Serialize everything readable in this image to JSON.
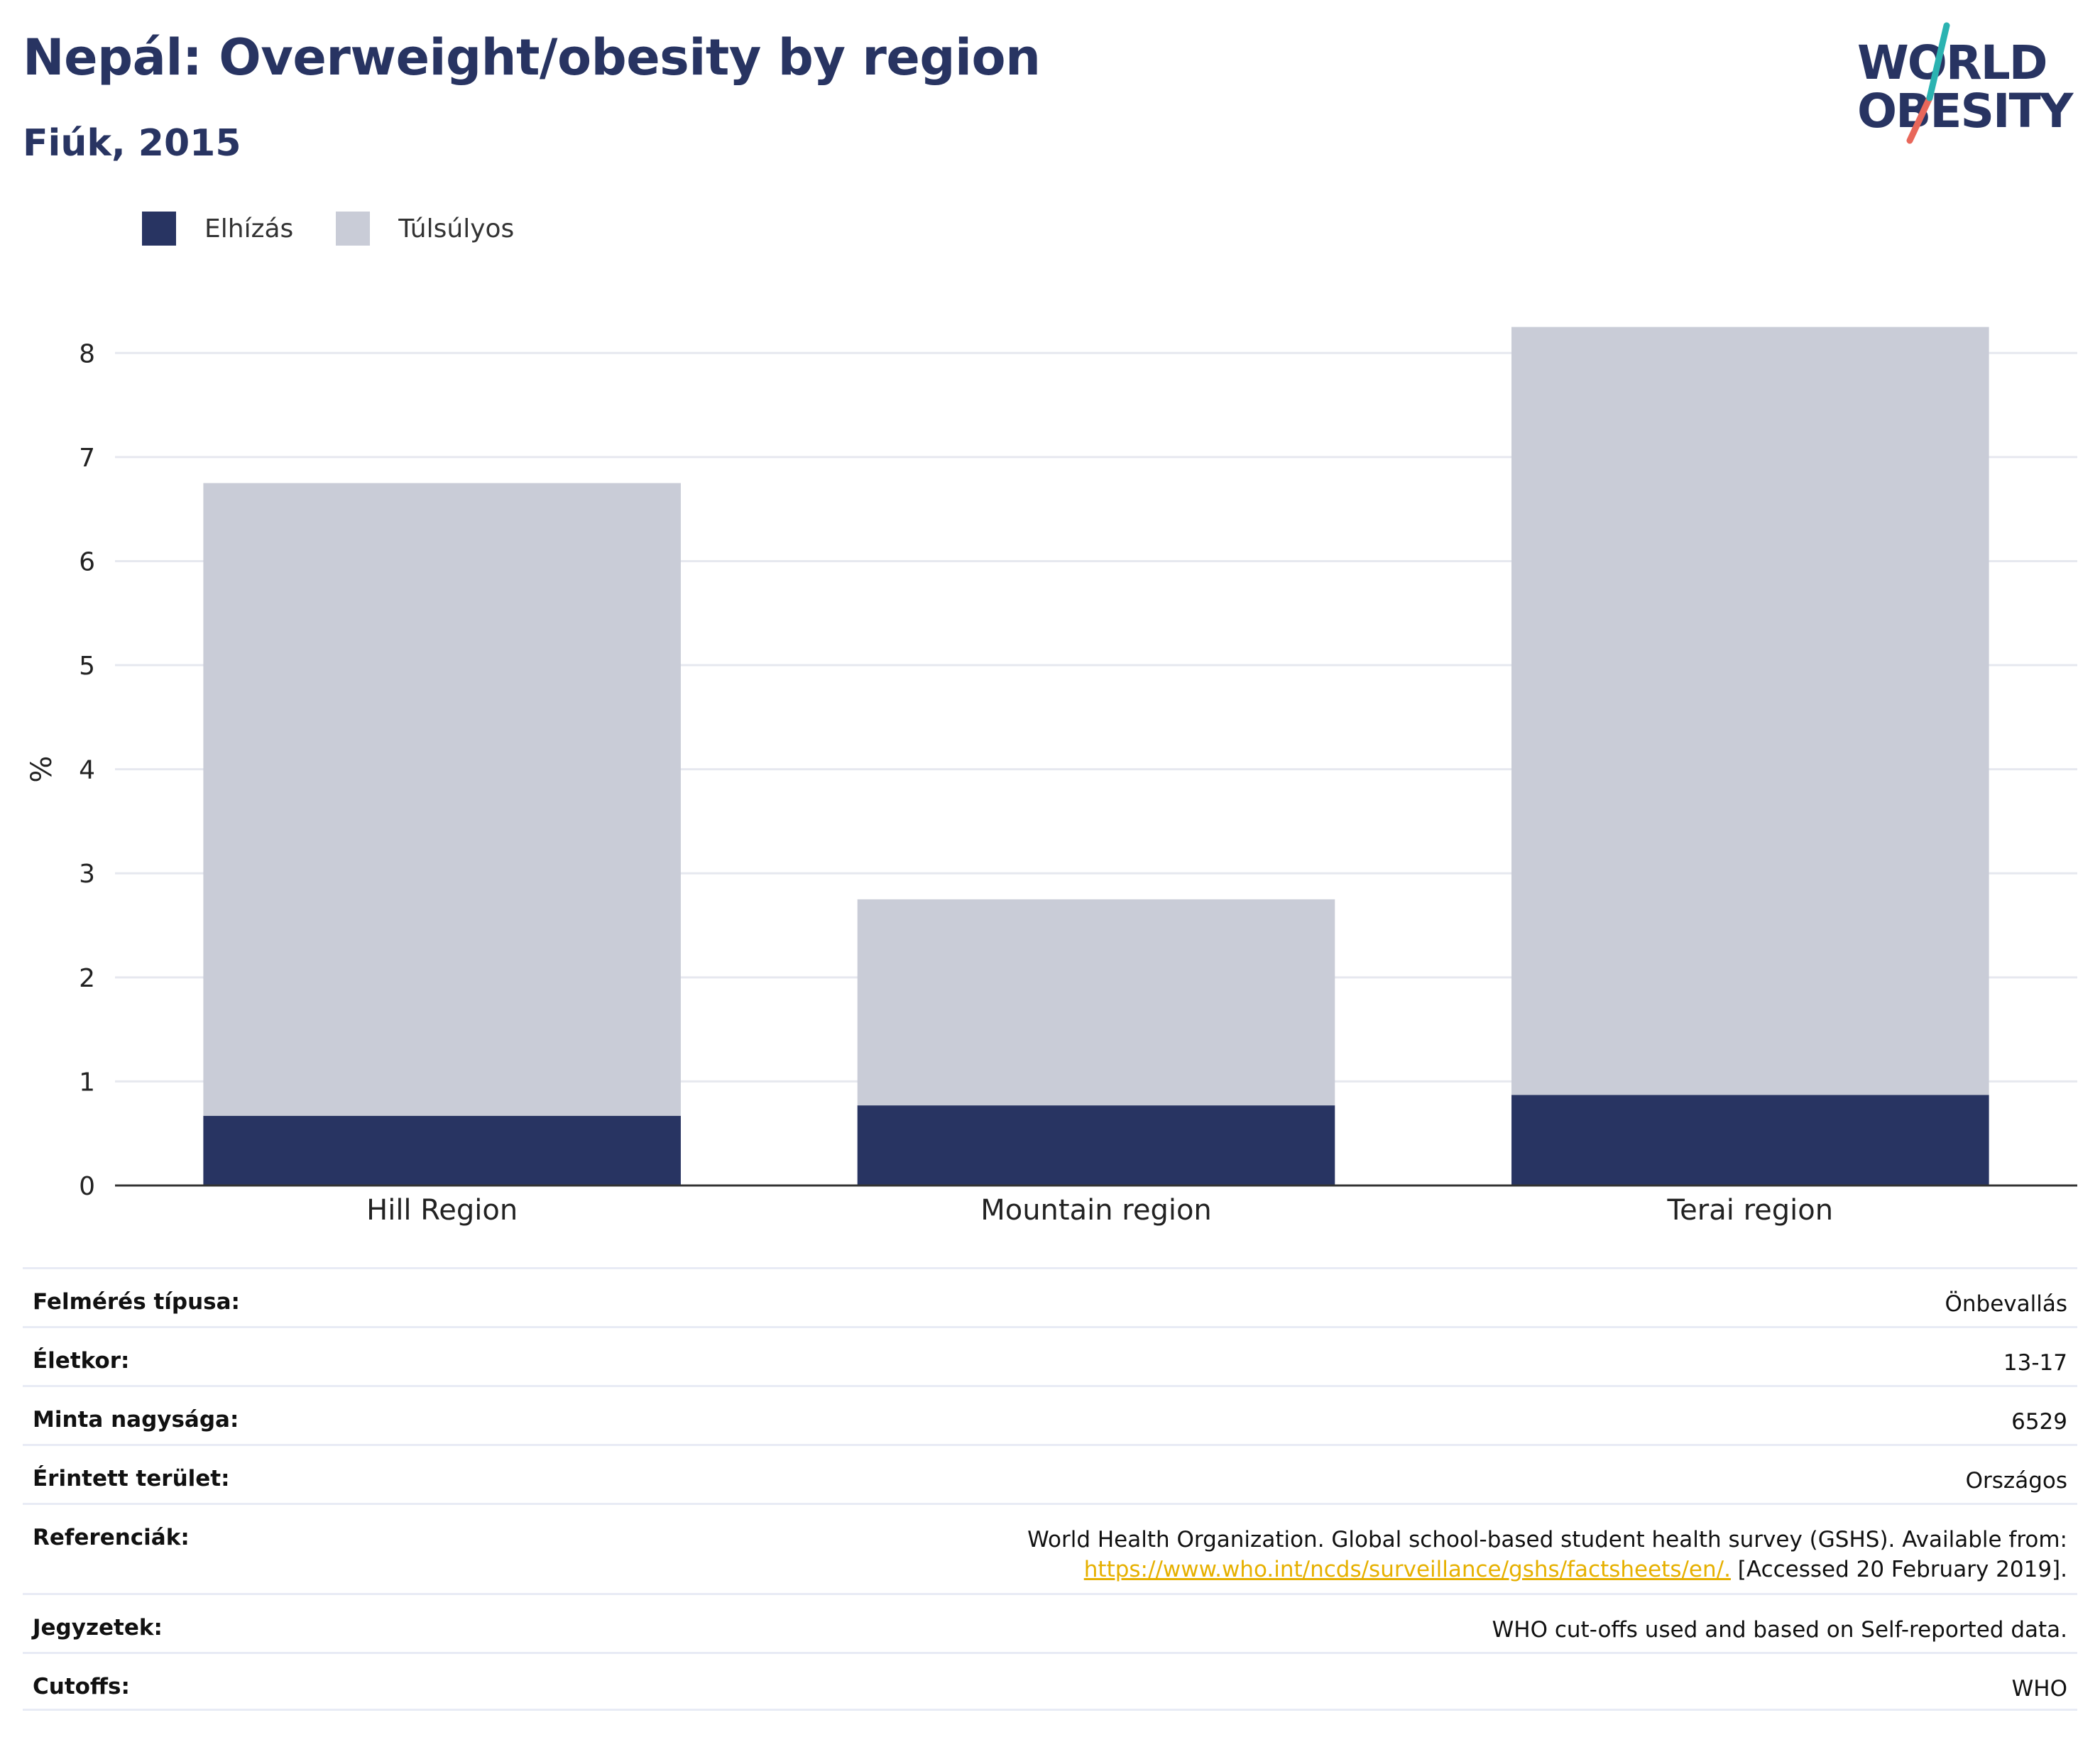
{
  "header": {
    "title": "Nepál: Overweight/obesity by region",
    "subtitle": "Fiúk, 2015"
  },
  "logo": {
    "line1": "WORLD",
    "line2": "OBESITY"
  },
  "colors": {
    "obesity": "#283462",
    "overweight": "#c9ccd7",
    "accent_teal": "#2bb3b1",
    "accent_red": "#e8675a",
    "link": "#e6b000"
  },
  "legend": [
    {
      "label": "Elhízás",
      "color": "#283462"
    },
    {
      "label": "Túlsúlyos",
      "color": "#c9ccd7"
    }
  ],
  "chart_data": {
    "type": "bar",
    "stacked": true,
    "categories": [
      "Hill Region",
      "Mountain region",
      "Terai region"
    ],
    "series": [
      {
        "name": "Elhízás",
        "values": [
          0.67,
          0.77,
          0.87
        ]
      },
      {
        "name": "Túlsúlyos",
        "values": [
          6.08,
          1.98,
          7.38
        ]
      }
    ],
    "ylabel": "%",
    "ylim": [
      0,
      8.8
    ],
    "yticks": [
      0,
      1,
      2,
      3,
      4,
      5,
      6,
      7,
      8
    ],
    "grid": true,
    "legend_position": "top-left"
  },
  "info": {
    "rows": [
      {
        "label": "Felmérés típusa:",
        "value": "Önbevallás"
      },
      {
        "label": "Életkor:",
        "value": "13-17"
      },
      {
        "label": "Minta nagysága:",
        "value": "6529"
      },
      {
        "label": "Érintett terület:",
        "value": "Országos"
      }
    ],
    "references": {
      "label": "Referenciák:",
      "text": "World Health Organization. Global school-based student health survey (GSHS). Available from:",
      "link": "https://www.who.int/ncds/surveillance/gshs/factsheets/en/.",
      "accessed": " [Accessed 20 February 2019]."
    },
    "notes": {
      "label": "Jegyzetek:",
      "value": "WHO cut-offs used and based on Self-reported data."
    },
    "cutoffs": {
      "label": "Cutoffs:",
      "value": "WHO"
    }
  }
}
